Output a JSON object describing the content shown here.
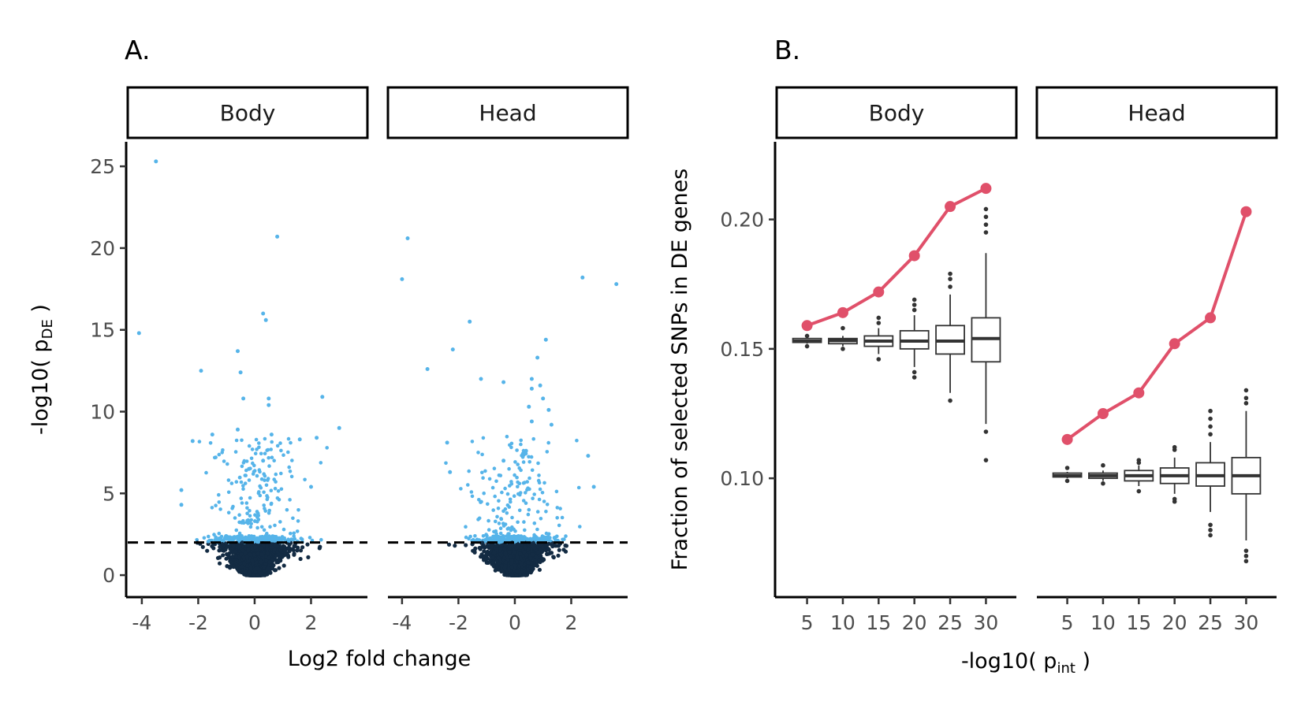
{
  "chart_data": [
    {
      "panel": "A.",
      "type": "scatter",
      "facets": [
        "Body",
        "Head"
      ],
      "xlabel": "Log2 fold change",
      "ylabel": "-log10( p",
      "ylabel_sub": "DE",
      "ylabel_end": " )",
      "xlim": [
        -4.5,
        4.0
      ],
      "ylim": [
        -1.2,
        26.5
      ],
      "x_ticks": [
        -4,
        -2,
        0,
        2
      ],
      "y_ticks": [
        0,
        5,
        10,
        15,
        20,
        25
      ],
      "threshold": 2,
      "colors": {
        "significant": "#56B4E9",
        "nonsignificant": "#132B43",
        "threshold_line": "#000000"
      },
      "significant_points": {
        "Body": [
          {
            "x": -3.5,
            "y": 25.3
          },
          {
            "x": 0.8,
            "y": 20.7
          },
          {
            "x": -4.1,
            "y": 14.8
          },
          {
            "x": 0.3,
            "y": 16.0
          },
          {
            "x": 0.4,
            "y": 15.6
          },
          {
            "x": -0.6,
            "y": 13.7
          },
          {
            "x": -1.9,
            "y": 12.5
          },
          {
            "x": -0.5,
            "y": 12.4
          },
          {
            "x": 2.4,
            "y": 10.9
          },
          {
            "x": -0.4,
            "y": 10.8
          },
          {
            "x": 0.5,
            "y": 10.8
          },
          {
            "x": 0.5,
            "y": 10.4
          },
          {
            "x": 3.0,
            "y": 9.0
          },
          {
            "x": -2.2,
            "y": 8.2
          },
          {
            "x": 2.2,
            "y": 8.4
          },
          {
            "x": 1.6,
            "y": 8.3
          },
          {
            "x": 0.6,
            "y": 8.6
          },
          {
            "x": -0.6,
            "y": 8.9
          },
          {
            "x": -1.5,
            "y": 8.6
          },
          {
            "x": -2.6,
            "y": 5.2
          },
          {
            "x": -2.6,
            "y": 4.3
          },
          {
            "x": 2.0,
            "y": 5.4
          },
          {
            "x": -0.2,
            "y": 6.5
          },
          {
            "x": 0.3,
            "y": 7.0
          }
        ],
        "Head": [
          {
            "x": 2.4,
            "y": 18.2
          },
          {
            "x": 3.6,
            "y": 17.8
          },
          {
            "x": -4.0,
            "y": 18.1
          },
          {
            "x": -3.8,
            "y": 20.6
          },
          {
            "x": -1.6,
            "y": 15.5
          },
          {
            "x": 1.1,
            "y": 14.4
          },
          {
            "x": -2.2,
            "y": 13.8
          },
          {
            "x": 0.8,
            "y": 13.3
          },
          {
            "x": -3.1,
            "y": 12.6
          },
          {
            "x": 0.6,
            "y": 12.0
          },
          {
            "x": -1.2,
            "y": 12.0
          },
          {
            "x": -0.4,
            "y": 11.8
          },
          {
            "x": 0.9,
            "y": 11.6
          },
          {
            "x": 0.6,
            "y": 11.4
          },
          {
            "x": 1.0,
            "y": 10.8
          },
          {
            "x": 0.5,
            "y": 10.3
          },
          {
            "x": 1.2,
            "y": 10.1
          },
          {
            "x": 1.3,
            "y": 9.2
          },
          {
            "x": 0.6,
            "y": 9.4
          },
          {
            "x": -2.4,
            "y": 8.1
          },
          {
            "x": 2.6,
            "y": 7.3
          },
          {
            "x": 2.8,
            "y": 5.4
          },
          {
            "x": -2.3,
            "y": 6.3
          },
          {
            "x": -0.4,
            "y": 7.0
          },
          {
            "x": 0.4,
            "y": 7.6
          }
        ]
      },
      "distribution_note": "Dense cloud of thousands of genes: points with -log10(p_DE) >= 2 drawn light blue, below drawn dark navy; cloud centred at 0 and widening with significance."
    },
    {
      "panel": "B.",
      "type": "box",
      "facets": [
        "Body",
        "Head"
      ],
      "xlabel": "-log10( p",
      "xlabel_sub": "int",
      "xlabel_end": " )",
      "ylabel": "Fraction of selected SNPs in DE genes",
      "categories": [
        "5",
        "10",
        "15",
        "20",
        "25",
        "30"
      ],
      "ylim": [
        0.055,
        0.23
      ],
      "y_ticks": [
        0.1,
        0.15,
        0.2
      ],
      "y_tick_labels": [
        "0.10",
        "0.15",
        "0.20"
      ],
      "colors": {
        "observed": "#E0506A",
        "box": "#333333"
      },
      "observed": {
        "Body": [
          0.159,
          0.164,
          0.172,
          0.186,
          0.205,
          0.212
        ],
        "Head": [
          0.115,
          0.125,
          0.133,
          0.152,
          0.162,
          0.203
        ]
      },
      "null_boxes": {
        "Body": [
          {
            "min": 0.152,
            "q1": 0.1525,
            "median": 0.153,
            "q3": 0.154,
            "max": 0.1545,
            "outliers": [
              0.151,
              0.155
            ]
          },
          {
            "min": 0.151,
            "q1": 0.152,
            "median": 0.1532,
            "q3": 0.154,
            "max": 0.155,
            "outliers": [
              0.15,
              0.158
            ]
          },
          {
            "min": 0.148,
            "q1": 0.151,
            "median": 0.153,
            "q3": 0.155,
            "max": 0.158,
            "outliers": [
              0.146,
              0.16,
              0.162
            ]
          },
          {
            "min": 0.143,
            "q1": 0.15,
            "median": 0.153,
            "q3": 0.157,
            "max": 0.163,
            "outliers": [
              0.139,
              0.141,
              0.165,
              0.167,
              0.169
            ]
          },
          {
            "min": 0.133,
            "q1": 0.148,
            "median": 0.153,
            "q3": 0.159,
            "max": 0.171,
            "outliers": [
              0.13,
              0.174,
              0.177,
              0.179
            ]
          },
          {
            "min": 0.121,
            "q1": 0.145,
            "median": 0.154,
            "q3": 0.162,
            "max": 0.187,
            "outliers": [
              0.107,
              0.118,
              0.195,
              0.198,
              0.201,
              0.204
            ]
          }
        ],
        "Head": [
          {
            "min": 0.1,
            "q1": 0.1005,
            "median": 0.101,
            "q3": 0.102,
            "max": 0.1025,
            "outliers": [
              0.099,
              0.104
            ]
          },
          {
            "min": 0.099,
            "q1": 0.1,
            "median": 0.101,
            "q3": 0.102,
            "max": 0.103,
            "outliers": [
              0.098,
              0.105
            ]
          },
          {
            "min": 0.097,
            "q1": 0.099,
            "median": 0.101,
            "q3": 0.103,
            "max": 0.105,
            "outliers": [
              0.095,
              0.106,
              0.107
            ]
          },
          {
            "min": 0.094,
            "q1": 0.098,
            "median": 0.101,
            "q3": 0.104,
            "max": 0.108,
            "outliers": [
              0.091,
              0.092,
              0.111,
              0.112
            ]
          },
          {
            "min": 0.087,
            "q1": 0.097,
            "median": 0.101,
            "q3": 0.106,
            "max": 0.114,
            "outliers": [
              0.078,
              0.08,
              0.082,
              0.117,
              0.12,
              0.123,
              0.126
            ]
          },
          {
            "min": 0.076,
            "q1": 0.094,
            "median": 0.101,
            "q3": 0.108,
            "max": 0.126,
            "outliers": [
              0.068,
              0.07,
              0.072,
              0.129,
              0.131,
              0.134
            ]
          }
        ]
      }
    }
  ]
}
